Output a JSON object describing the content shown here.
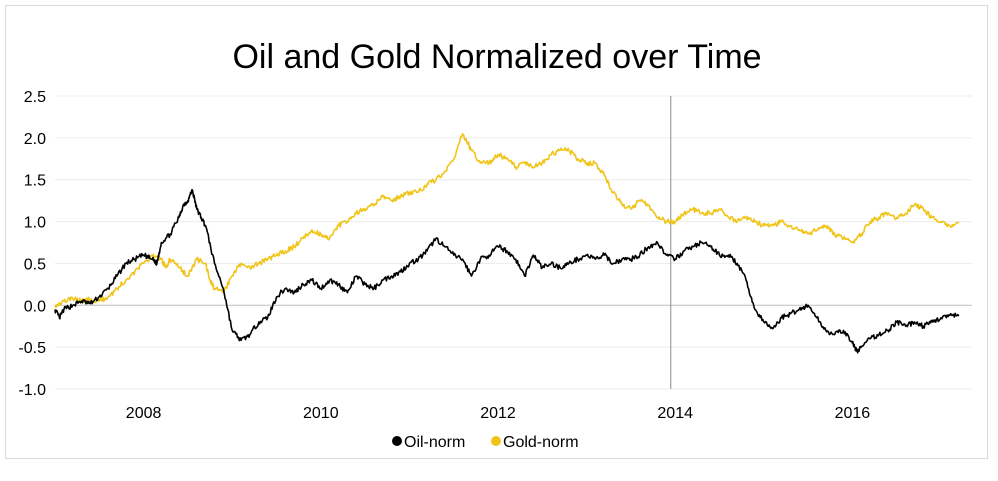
{
  "chart_data": {
    "type": "line",
    "title": "Oil and Gold Normalized over Time",
    "xlabel": "",
    "ylabel": "",
    "xlim": [
      2007.0,
      2017.35
    ],
    "ylim": [
      -1.0,
      2.5
    ],
    "yticks": [
      "-1.0",
      "-0.5",
      "0.0",
      "0.5",
      "1.0",
      "1.5",
      "2.0",
      "2.5"
    ],
    "xticks": [
      "2008",
      "2010",
      "2012",
      "2014",
      "2016"
    ],
    "grid": true,
    "legend": "bottom-center",
    "vertical_marker_x": 2013.95,
    "series": [
      {
        "name": "Oil-norm",
        "color": "#000000",
        "x": [
          2007.0,
          2007.05,
          2007.1,
          2007.2,
          2007.3,
          2007.4,
          2007.5,
          2007.6,
          2007.7,
          2007.8,
          2007.9,
          2008.0,
          2008.1,
          2008.15,
          2008.2,
          2008.3,
          2008.4,
          2008.45,
          2008.5,
          2008.55,
          2008.6,
          2008.65,
          2008.7,
          2008.8,
          2008.9,
          2009.0,
          2009.1,
          2009.2,
          2009.3,
          2009.4,
          2009.5,
          2009.6,
          2009.7,
          2009.8,
          2009.9,
          2010.0,
          2010.1,
          2010.2,
          2010.3,
          2010.4,
          2010.5,
          2010.6,
          2010.7,
          2010.8,
          2010.9,
          2011.0,
          2011.1,
          2011.2,
          2011.3,
          2011.4,
          2011.5,
          2011.6,
          2011.7,
          2011.8,
          2011.9,
          2012.0,
          2012.1,
          2012.2,
          2012.3,
          2012.4,
          2012.5,
          2012.6,
          2012.7,
          2012.8,
          2012.9,
          2013.0,
          2013.1,
          2013.2,
          2013.3,
          2013.4,
          2013.5,
          2013.6,
          2013.7,
          2013.8,
          2013.9,
          2014.0,
          2014.1,
          2014.2,
          2014.3,
          2014.4,
          2014.5,
          2014.6,
          2014.7,
          2014.8,
          2014.9,
          2015.0,
          2015.1,
          2015.2,
          2015.3,
          2015.4,
          2015.5,
          2015.6,
          2015.7,
          2015.8,
          2015.9,
          2016.0,
          2016.05,
          2016.1,
          2016.2,
          2016.3,
          2016.4,
          2016.5,
          2016.6,
          2016.7,
          2016.8,
          2016.9,
          2017.0,
          2017.1,
          2017.2
        ],
        "y": [
          -0.05,
          -0.15,
          -0.05,
          0.0,
          0.05,
          0.02,
          0.1,
          0.2,
          0.35,
          0.5,
          0.55,
          0.6,
          0.55,
          0.5,
          0.75,
          0.85,
          1.05,
          1.2,
          1.25,
          1.38,
          1.15,
          1.05,
          0.95,
          0.5,
          0.2,
          -0.3,
          -0.42,
          -0.35,
          -0.2,
          -0.15,
          0.1,
          0.2,
          0.15,
          0.25,
          0.3,
          0.2,
          0.3,
          0.25,
          0.15,
          0.35,
          0.25,
          0.2,
          0.3,
          0.35,
          0.4,
          0.5,
          0.55,
          0.65,
          0.8,
          0.7,
          0.6,
          0.55,
          0.35,
          0.55,
          0.6,
          0.7,
          0.65,
          0.55,
          0.35,
          0.6,
          0.45,
          0.5,
          0.45,
          0.5,
          0.55,
          0.6,
          0.55,
          0.6,
          0.5,
          0.55,
          0.55,
          0.6,
          0.7,
          0.75,
          0.6,
          0.55,
          0.65,
          0.7,
          0.75,
          0.7,
          0.6,
          0.6,
          0.5,
          0.3,
          -0.05,
          -0.2,
          -0.28,
          -0.15,
          -0.1,
          -0.05,
          0.0,
          -0.15,
          -0.3,
          -0.35,
          -0.3,
          -0.45,
          -0.55,
          -0.5,
          -0.4,
          -0.35,
          -0.3,
          -0.2,
          -0.25,
          -0.2,
          -0.25,
          -0.2,
          -0.15,
          -0.12,
          -0.13
        ]
      },
      {
        "name": "Gold-norm",
        "color": "#f0c419",
        "x": [
          2007.0,
          2007.1,
          2007.2,
          2007.3,
          2007.4,
          2007.5,
          2007.6,
          2007.7,
          2007.8,
          2007.9,
          2008.0,
          2008.1,
          2008.2,
          2008.25,
          2008.3,
          2008.4,
          2008.5,
          2008.6,
          2008.7,
          2008.75,
          2008.8,
          2008.9,
          2009.0,
          2009.1,
          2009.2,
          2009.3,
          2009.4,
          2009.5,
          2009.6,
          2009.7,
          2009.8,
          2009.9,
          2010.0,
          2010.1,
          2010.2,
          2010.3,
          2010.4,
          2010.5,
          2010.6,
          2010.7,
          2010.8,
          2010.9,
          2011.0,
          2011.1,
          2011.2,
          2011.3,
          2011.4,
          2011.5,
          2011.6,
          2011.65,
          2011.7,
          2011.8,
          2011.9,
          2012.0,
          2012.1,
          2012.2,
          2012.3,
          2012.4,
          2012.5,
          2012.6,
          2012.7,
          2012.8,
          2012.9,
          2013.0,
          2013.1,
          2013.2,
          2013.3,
          2013.4,
          2013.5,
          2013.6,
          2013.7,
          2013.8,
          2013.9,
          2014.0,
          2014.1,
          2014.2,
          2014.3,
          2014.4,
          2014.5,
          2014.6,
          2014.7,
          2014.8,
          2014.9,
          2015.0,
          2015.1,
          2015.2,
          2015.3,
          2015.4,
          2015.5,
          2015.6,
          2015.7,
          2015.8,
          2015.9,
          2016.0,
          2016.1,
          2016.2,
          2016.3,
          2016.4,
          2016.5,
          2016.6,
          2016.7,
          2016.8,
          2016.9,
          2017.0,
          2017.1,
          2017.2
        ],
        "y": [
          0.0,
          0.05,
          0.08,
          0.05,
          0.07,
          0.05,
          0.1,
          0.2,
          0.3,
          0.4,
          0.5,
          0.6,
          0.55,
          0.45,
          0.55,
          0.45,
          0.35,
          0.55,
          0.5,
          0.3,
          0.2,
          0.15,
          0.35,
          0.5,
          0.45,
          0.5,
          0.55,
          0.6,
          0.65,
          0.7,
          0.8,
          0.9,
          0.85,
          0.8,
          0.95,
          1.0,
          1.1,
          1.15,
          1.2,
          1.3,
          1.25,
          1.3,
          1.35,
          1.35,
          1.45,
          1.5,
          1.6,
          1.75,
          2.05,
          1.95,
          1.85,
          1.7,
          1.7,
          1.8,
          1.75,
          1.65,
          1.7,
          1.65,
          1.7,
          1.8,
          1.85,
          1.85,
          1.75,
          1.7,
          1.7,
          1.55,
          1.35,
          1.2,
          1.15,
          1.25,
          1.2,
          1.05,
          1.0,
          1.0,
          1.1,
          1.15,
          1.1,
          1.1,
          1.15,
          1.05,
          1.0,
          1.05,
          1.0,
          0.95,
          0.95,
          1.0,
          0.95,
          0.9,
          0.85,
          0.9,
          0.95,
          0.85,
          0.8,
          0.75,
          0.85,
          1.0,
          1.05,
          1.1,
          1.05,
          1.1,
          1.2,
          1.15,
          1.05,
          1.0,
          0.95,
          1.0
        ]
      }
    ]
  }
}
